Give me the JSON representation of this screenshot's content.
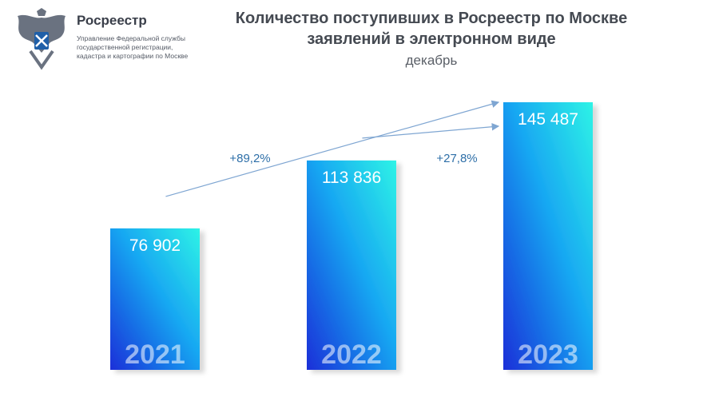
{
  "header": {
    "org_name": "Росреестр",
    "org_desc_1": "Управление Федеральной службы",
    "org_desc_2": "государственной регистрации,",
    "org_desc_3": "кадастра и картографии по Москве",
    "title_line1": "Количество поступивших в Росреестр по Москве",
    "title_line2": "заявлений в электронном виде",
    "subtitle": "декабрь"
  },
  "icons": {
    "logo": "double-headed-eagle-emblem-icon"
  },
  "chart_data": {
    "type": "bar",
    "title": "Количество поступивших в Росреестр по Москве заявлений в электронном виде",
    "subtitle": "декабрь",
    "categories": [
      "2021",
      "2022",
      "2023"
    ],
    "values": [
      76902,
      113836,
      145487
    ],
    "value_labels": [
      "76 902",
      "113 836",
      "145 487"
    ],
    "growth": [
      {
        "from": "2021",
        "to": "2023",
        "label": "+89,2%"
      },
      {
        "from": "2022",
        "to": "2023",
        "label": "+27,8%"
      }
    ],
    "ylim": [
      0,
      145487
    ],
    "grid": false,
    "legend": "none",
    "colors": {
      "bar_top": "#2ef3e6",
      "bar_bottom": "#1a2fd8",
      "arrow": "#7fa6d2",
      "growth_text": "#2e6fa8"
    }
  }
}
